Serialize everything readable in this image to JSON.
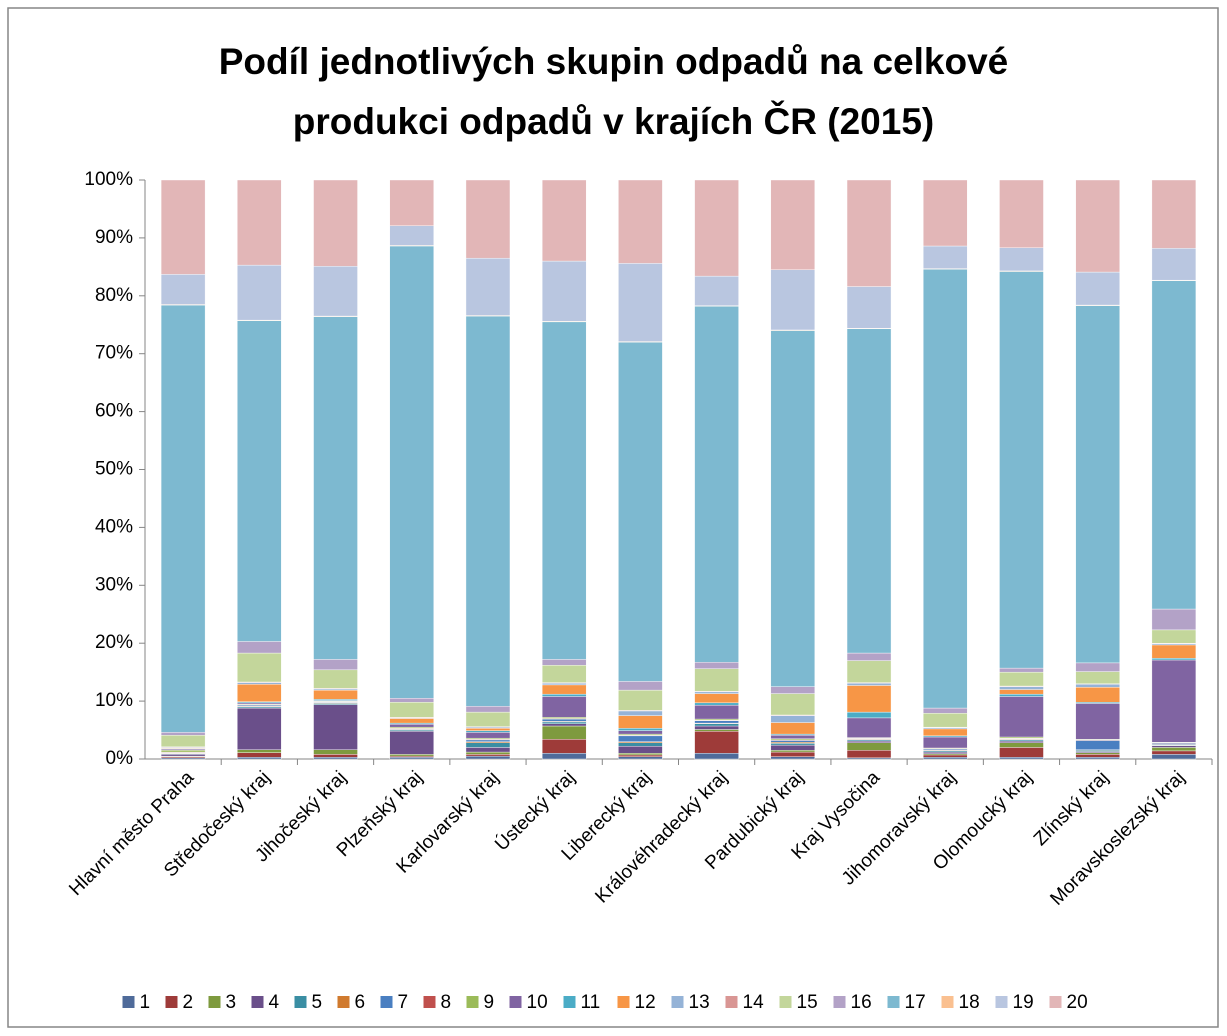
{
  "chart_data": {
    "type": "stacked_bar_100",
    "title": "Podíl jednotlivých skupin odpadů na celkové\nprodukci odpadů v krajích ČR (2015)",
    "categories": [
      "Hlavní město Praha",
      "Středočeský kraj",
      "Jihočeský kraj",
      "Plzeňský kraj",
      "Karlovarský kraj",
      "Ústecký kraj",
      "Liberecký kraj",
      "Královéhradecký kraj",
      "Pardubický kraj",
      "Kraj Vysočina",
      "Jihomoravský kraj",
      "Olomoucký kraj",
      "Zlínský kraj",
      "Moravskoslezský kraj"
    ],
    "ylim": [
      0,
      100
    ],
    "yticks": [
      {
        "value": 0,
        "label": "0%"
      },
      {
        "value": 10,
        "label": "10%"
      },
      {
        "value": 20,
        "label": "20%"
      },
      {
        "value": 30,
        "label": "30%"
      },
      {
        "value": 40,
        "label": "40%"
      },
      {
        "value": 50,
        "label": "50%"
      },
      {
        "value": 60,
        "label": "60%"
      },
      {
        "value": 70,
        "label": "70%"
      },
      {
        "value": 80,
        "label": "80%"
      },
      {
        "value": 90,
        "label": "90%"
      },
      {
        "value": 100,
        "label": "100%"
      }
    ],
    "grid": false,
    "legend": "bottom",
    "series": [
      {
        "name": "1",
        "color": "#4F6B9A",
        "values": [
          0.2,
          0.3,
          0.3,
          0.3,
          0.5,
          1.0,
          0.4,
          1.0,
          0.4,
          0.2,
          0.3,
          0.3,
          0.3,
          0.8
        ]
      },
      {
        "name": "2",
        "color": "#9E3B39",
        "values": [
          0.2,
          0.8,
          0.5,
          0.2,
          0.3,
          2.4,
          0.3,
          3.8,
          0.8,
          1.3,
          0.4,
          1.7,
          0.5,
          0.6
        ]
      },
      {
        "name": "3",
        "color": "#7E9A3E",
        "values": [
          0.1,
          0.5,
          0.8,
          0.3,
          0.4,
          2.3,
          0.3,
          0.3,
          0.3,
          1.3,
          0.2,
          0.8,
          0.3,
          0.6
        ]
      },
      {
        "name": "4",
        "color": "#6A4F8A",
        "values": [
          0.3,
          7.2,
          7.8,
          4.0,
          0.8,
          0.4,
          1.2,
          0.6,
          0.9,
          0.3,
          0.3,
          0.3,
          0.2,
          0.3
        ]
      },
      {
        "name": "5",
        "color": "#3A8EA3",
        "values": [
          0.1,
          0.2,
          0.2,
          0.2,
          0.8,
          0.3,
          0.6,
          0.4,
          0.3,
          0.2,
          0.2,
          0.2,
          0.2,
          0.1
        ]
      },
      {
        "name": "6",
        "color": "#D07A2E",
        "values": [
          0.1,
          0.1,
          0.1,
          0.1,
          0.2,
          0.1,
          0.2,
          0.1,
          0.2,
          0.1,
          0.1,
          0.1,
          0.1,
          0.1
        ]
      },
      {
        "name": "7",
        "color": "#4A7FC1",
        "values": [
          0.1,
          0.2,
          0.1,
          0.1,
          0.3,
          0.4,
          1.0,
          0.4,
          0.3,
          0.1,
          0.2,
          0.1,
          1.6,
          0.2
        ]
      },
      {
        "name": "8",
        "color": "#C0504D",
        "values": [
          0.1,
          0.1,
          0.1,
          0.1,
          0.1,
          0.1,
          0.1,
          0.1,
          0.1,
          0.1,
          0.1,
          0.1,
          0.1,
          0.1
        ]
      },
      {
        "name": "9",
        "color": "#9BBB59",
        "values": [
          0.3,
          0.1,
          0.1,
          0.2,
          0.2,
          0.2,
          0.2,
          0.2,
          0.2,
          0.1,
          0.1,
          0.2,
          0.1,
          0.1
        ]
      },
      {
        "name": "10",
        "color": "#8064A2",
        "values": [
          0.2,
          0.2,
          0.1,
          0.5,
          1.0,
          3.6,
          0.6,
          2.4,
          0.6,
          3.4,
          1.9,
          7.0,
          6.2,
          14.2
        ]
      },
      {
        "name": "11",
        "color": "#4BACC6",
        "values": [
          0.1,
          0.2,
          0.2,
          0.2,
          0.3,
          0.4,
          0.4,
          0.4,
          0.2,
          1.0,
          0.2,
          0.4,
          0.2,
          0.3
        ]
      },
      {
        "name": "12",
        "color": "#F79646",
        "values": [
          0.1,
          3.0,
          1.6,
          0.8,
          0.4,
          1.6,
          2.2,
          1.6,
          2.0,
          4.6,
          1.2,
          0.8,
          2.6,
          2.3
        ]
      },
      {
        "name": "13",
        "color": "#95B3D7",
        "values": [
          0.1,
          0.3,
          0.2,
          0.1,
          0.2,
          0.3,
          0.8,
          0.3,
          1.2,
          0.4,
          0.2,
          0.5,
          0.5,
          0.2
        ]
      },
      {
        "name": "14",
        "color": "#D99694",
        "values": [
          0.1,
          0.1,
          0.1,
          0.1,
          0.1,
          0.1,
          0.1,
          0.1,
          0.1,
          0.1,
          0.1,
          0.1,
          0.1,
          0.1
        ]
      },
      {
        "name": "15",
        "color": "#C3D69B",
        "values": [
          2.0,
          5.0,
          3.2,
          2.6,
          2.5,
          3.0,
          3.5,
          3.9,
          3.7,
          3.8,
          2.4,
          2.4,
          2.1,
          2.3
        ]
      },
      {
        "name": "16",
        "color": "#B3A2C7",
        "values": [
          0.5,
          2.0,
          1.8,
          0.7,
          1.0,
          1.0,
          1.5,
          1.1,
          1.2,
          1.3,
          0.9,
          0.7,
          1.5,
          3.6
        ]
      },
      {
        "name": "17",
        "color": "#7DB9D0",
        "values": [
          73.8,
          55.4,
          59.2,
          78.1,
          67.4,
          58.3,
          58.6,
          61.5,
          61.5,
          56.0,
          75.8,
          68.5,
          61.7,
          56.7
        ]
      },
      {
        "name": "18",
        "color": "#FAC090",
        "values": [
          0.1,
          0.1,
          0.1,
          0.1,
          0.1,
          0.1,
          0.1,
          0.1,
          0.1,
          0.1,
          0.1,
          0.1,
          0.1,
          0.1
        ]
      },
      {
        "name": "19",
        "color": "#B9C6E0",
        "values": [
          5.2,
          9.5,
          8.6,
          3.4,
          9.9,
          10.4,
          13.5,
          5.1,
          10.4,
          7.2,
          3.9,
          4.0,
          5.7,
          5.5
        ]
      },
      {
        "name": "20",
        "color": "#E2B6B7",
        "values": [
          16.3,
          14.7,
          14.9,
          7.9,
          13.5,
          14.0,
          14.4,
          16.6,
          15.5,
          18.4,
          11.4,
          11.7,
          15.9,
          11.8
        ]
      }
    ]
  }
}
